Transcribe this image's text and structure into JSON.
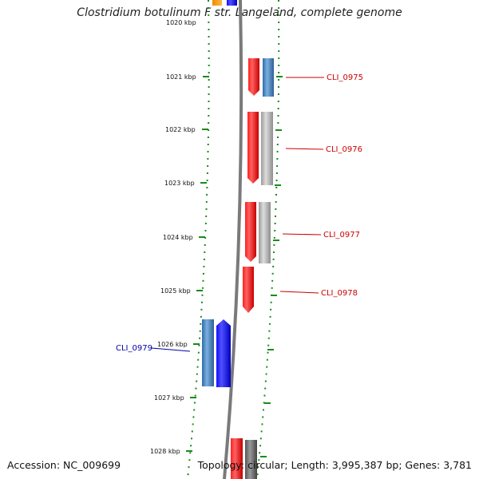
{
  "title": "Clostridium botulinum F str. Langeland, complete genome",
  "footer": {
    "accession": "Accession: NC_009699",
    "summary": "Topology: circular; Length: 3,995,387 bp; Genes: 3,781"
  },
  "ruler": {
    "partial_label": "1020 kbp",
    "labels": [
      "1021 kbp",
      "1022 kbp",
      "1023 kbp",
      "1024 kbp",
      "1025 kbp",
      "1026 kbp",
      "1027 kbp",
      "1028 kbp"
    ]
  },
  "genes": [
    {
      "label": "CLI_0975",
      "color": "#cc0000"
    },
    {
      "label": "CLI_0976",
      "color": "#cc0000"
    },
    {
      "label": "CLI_0977",
      "color": "#cc0000"
    },
    {
      "label": "CLI_0978",
      "color": "#cc0000"
    },
    {
      "label": "CLI_0979",
      "color": "#0000aa"
    }
  ],
  "colors": {
    "forward_cds": "#ee0000",
    "reverse_cds": "#0000ee",
    "steel_feature": "#3e7ab5",
    "gray_feature": "#a9a9a9",
    "backbone": "#7a7a7a",
    "tick_green": "#1a7a1a"
  }
}
